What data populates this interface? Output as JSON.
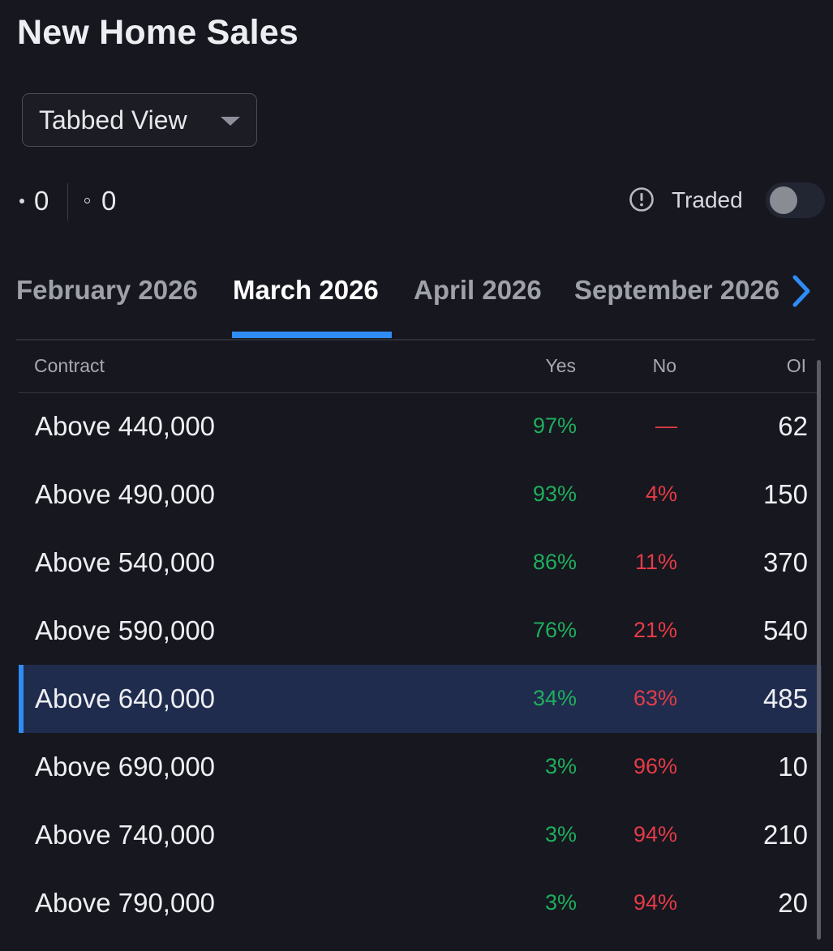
{
  "page": {
    "title": "New Home Sales"
  },
  "view_select": {
    "value": "Tabbed View"
  },
  "stats": {
    "filled_count": "0",
    "hollow_count": "0"
  },
  "traded": {
    "label": "Traded",
    "enabled": false
  },
  "tabs": [
    {
      "label": "February 2026",
      "active": false
    },
    {
      "label": "March 2026",
      "active": true
    },
    {
      "label": "April 2026",
      "active": false
    },
    {
      "label": "September 2026",
      "active": false
    }
  ],
  "table": {
    "headers": {
      "contract": "Contract",
      "yes": "Yes",
      "no": "No",
      "oi": "OI"
    },
    "rows": [
      {
        "contract": "Above 440,000",
        "yes": "97%",
        "no": "—",
        "oi": "62"
      },
      {
        "contract": "Above 490,000",
        "yes": "93%",
        "no": "4%",
        "oi": "150"
      },
      {
        "contract": "Above 540,000",
        "yes": "86%",
        "no": "11%",
        "oi": "370"
      },
      {
        "contract": "Above 590,000",
        "yes": "76%",
        "no": "21%",
        "oi": "540"
      },
      {
        "contract": "Above 640,000",
        "yes": "34%",
        "no": "63%",
        "oi": "485",
        "selected": true
      },
      {
        "contract": "Above 690,000",
        "yes": "3%",
        "no": "96%",
        "oi": "10"
      },
      {
        "contract": "Above 740,000",
        "yes": "3%",
        "no": "94%",
        "oi": "210"
      },
      {
        "contract": "Above 790,000",
        "yes": "3%",
        "no": "94%",
        "oi": "20"
      }
    ]
  },
  "colors": {
    "background": "#16171f",
    "accent": "#2f8cf5",
    "yes": "#1fae5c",
    "no": "#e53b47",
    "selected_row": "#1f2c4e"
  },
  "icons": {
    "info": "info-circle-icon",
    "next": "chevron-right-icon",
    "caret": "caret-down-icon"
  }
}
